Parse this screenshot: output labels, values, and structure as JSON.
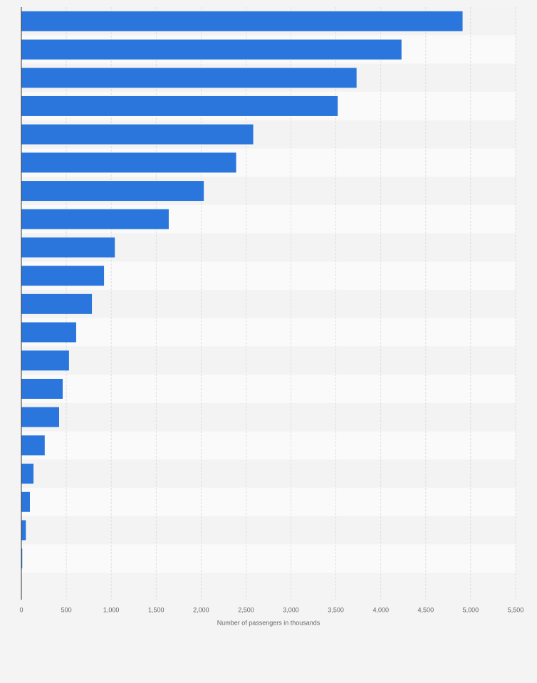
{
  "chart_data": {
    "type": "bar",
    "orientation": "horizontal",
    "x_label": "Number of passengers in thousands",
    "categories": [
      null,
      null,
      null,
      null,
      null,
      null,
      null,
      null,
      null,
      null,
      null,
      null,
      null,
      null,
      null,
      null,
      null,
      null,
      null,
      null
    ],
    "values": [
      4910,
      4230,
      3730,
      3520,
      2580,
      2390,
      2030,
      1640,
      1040,
      920,
      785,
      610,
      530,
      460,
      420,
      260,
      135,
      95,
      50,
      10
    ],
    "color": "#2a76dd",
    "xlim": [
      0,
      5500
    ],
    "xticks": [
      0,
      500,
      {
        "value": 1000,
        "label": "1,000"
      },
      {
        "value": 1500,
        "label": "1,500"
      },
      {
        "value": 2000,
        "label": "2,000"
      },
      {
        "value": 2500,
        "label": "2,500"
      },
      {
        "value": 3000,
        "label": "3,000"
      },
      {
        "value": 3500,
        "label": "3,500"
      },
      {
        "value": 4000,
        "label": "4,000"
      },
      {
        "value": 4500,
        "label": "4,500"
      },
      {
        "value": 5000,
        "label": "5,000"
      },
      {
        "value": 5500,
        "label": "5,500"
      }
    ],
    "grid": true
  }
}
